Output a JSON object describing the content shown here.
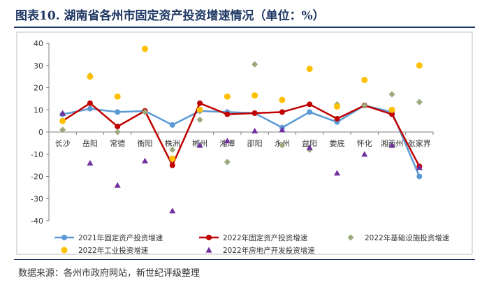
{
  "title": "图表10. 湖南省各州市固定资产投资增速情况（单位：%）",
  "source": "数据来源：各州市政府网站，新世纪评级整理",
  "chart_data": {
    "type": "line",
    "categories": [
      "长沙",
      "岳阳",
      "常德",
      "衡阳",
      "株洲",
      "郴州",
      "湘潭",
      "邵阳",
      "永州",
      "益阳",
      "娄底",
      "怀化",
      "湘西州",
      "张家界"
    ],
    "ylim": [
      -40,
      40
    ],
    "yticks": [
      -40,
      -30,
      -20,
      -10,
      0,
      10,
      20,
      30,
      40
    ],
    "grid": false,
    "legend_position": "bottom",
    "series": [
      {
        "name": "2021年固定资产投资增速",
        "type": "line",
        "marker": "circle",
        "color": "#5b9bd5",
        "values": [
          8,
          10.5,
          9,
          9.5,
          3.2,
          9.5,
          9,
          8.5,
          2,
          9,
          4.5,
          12,
          9,
          -20
        ]
      },
      {
        "name": "2022年固定资产投资增速",
        "type": "line",
        "marker": "circle",
        "color": "#c00000",
        "values": [
          5,
          13,
          2.5,
          9.5,
          -15,
          13,
          8,
          8.5,
          9,
          12.5,
          6,
          12,
          8,
          -15.5
        ]
      },
      {
        "name": "2022年基础设施投资增速",
        "type": "scatter",
        "marker": "diamond",
        "color": "#9aa87c",
        "values": [
          1,
          25.5,
          0,
          9,
          -8,
          5.5,
          -13.5,
          30.5,
          -6,
          -8,
          12.5,
          12,
          17,
          13.5
        ]
      },
      {
        "name": "2022年工业投资增速",
        "type": "scatter",
        "marker": "circle",
        "color": "#ffc000",
        "values": [
          5,
          25,
          16,
          37.5,
          -12,
          10,
          16,
          16.5,
          14.5,
          28.5,
          11.5,
          23.5,
          10,
          30
        ]
      },
      {
        "name": "2022年房地产开发投资增速",
        "type": "scatter",
        "marker": "triangle",
        "color": "#7030a0",
        "values": [
          8.5,
          -14,
          -24,
          -13,
          -35.5,
          -6,
          -4,
          0.5,
          1,
          -7,
          -18.5,
          -10,
          -6,
          -16
        ]
      }
    ]
  }
}
